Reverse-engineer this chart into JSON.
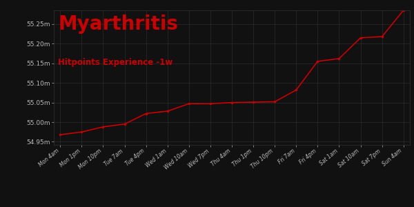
{
  "title": "Myarthritis",
  "subtitle": "Hitpoints Experience -1w",
  "background_color": "#111111",
  "plot_bg_color": "#111111",
  "sidebar_color": "#1a1a1a",
  "line_color": "#cc0000",
  "grid_color": "#333333",
  "title_color": "#cc0000",
  "subtitle_color": "#cc0000",
  "tick_label_color": "#bbbbbb",
  "x_labels": [
    "Mon 4am",
    "Mon 1pm",
    "Mon 10pm",
    "Tue 7am",
    "Tue 4pm",
    "Wed 1am",
    "Wed 10am",
    "Wed 7pm",
    "Thu 4am",
    "Thu 1pm",
    "Thu 10pm",
    "Fri 7am",
    "Fri 4pm",
    "Sat 1am",
    "Sat 10am",
    "Sat 7pm",
    "Sun 4am"
  ],
  "y_values": [
    54.968,
    54.975,
    54.988,
    54.995,
    55.022,
    55.028,
    55.047,
    55.047,
    55.05,
    55.051,
    55.052,
    55.082,
    55.155,
    55.162,
    55.215,
    55.218,
    55.285
  ],
  "ylim_min": 54.942,
  "ylim_max": 55.285,
  "y_ticks": [
    54.95,
    55.0,
    55.05,
    55.1,
    55.15,
    55.2,
    55.25
  ],
  "y_tick_labels": [
    "54.95m",
    "55.00m",
    "55.05m",
    "55.10m",
    "55.15m",
    "55.20m",
    "55.25m"
  ],
  "figsize": [
    6.0,
    3.0
  ],
  "dpi": 100
}
